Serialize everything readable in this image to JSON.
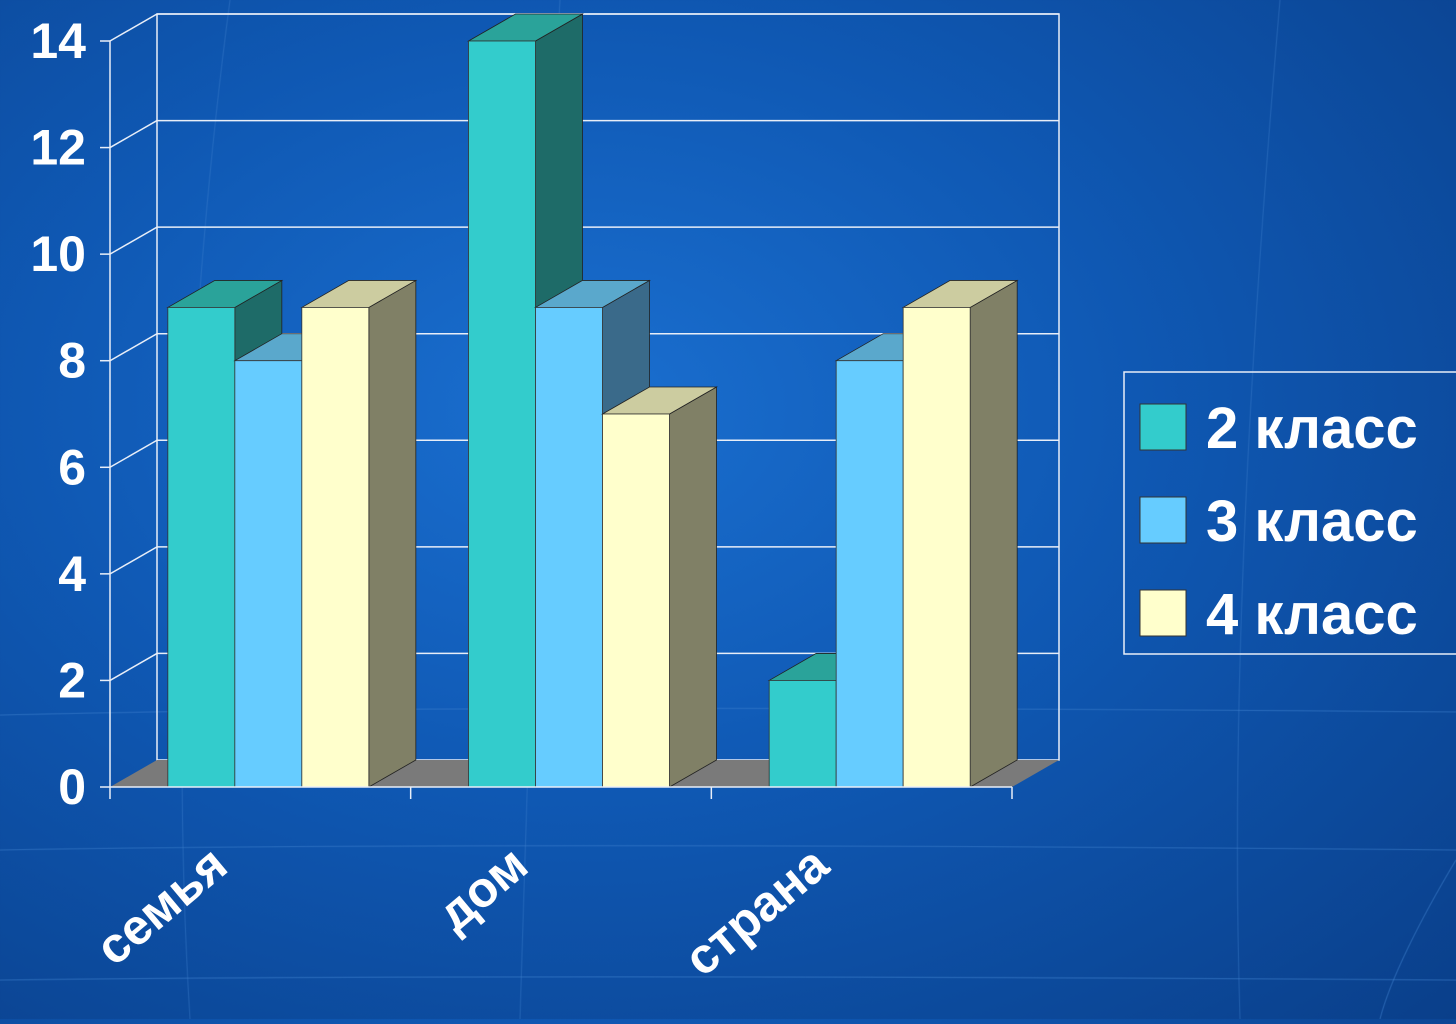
{
  "chart_data": {
    "type": "bar",
    "categories": [
      "семья",
      "дом",
      "страна"
    ],
    "series": [
      {
        "name": "2 класс",
        "values": [
          9,
          14,
          2
        ]
      },
      {
        "name": "3 класс",
        "values": [
          8,
          9,
          8
        ]
      },
      {
        "name": "4 класс",
        "values": [
          9,
          7,
          9
        ]
      }
    ],
    "ylim": [
      0,
      14
    ],
    "yticks": [
      "0",
      "2",
      "4",
      "6",
      "8",
      "10",
      "12",
      "14"
    ],
    "grid": true,
    "legend": "right",
    "colors": {
      "2 класс": {
        "front": "#33cccc",
        "top": "#2aa39a",
        "side": "#1e6b68"
      },
      "3 класс": {
        "front": "#66ccff",
        "top": "#5aa8cc",
        "side": "#3a6a8a"
      },
      "4 класс": {
        "front": "#ffffcc",
        "top": "#cccca0",
        "side": "#808066"
      }
    }
  }
}
